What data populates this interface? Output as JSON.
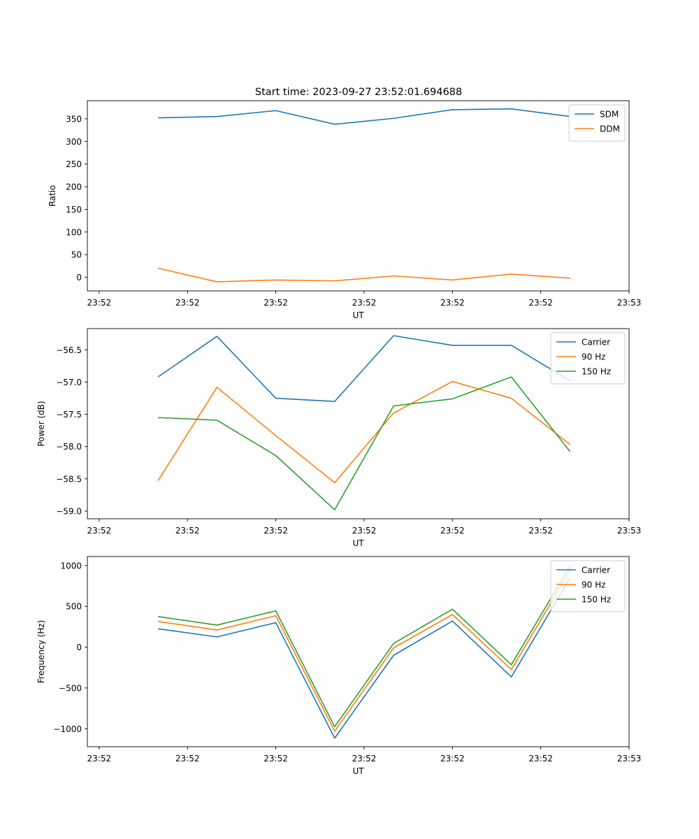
{
  "figure_title": "Start time: 2023-09-27 23:52:01.694688",
  "colors": {
    "blue": "#1f77b4",
    "orange": "#ff7f0e",
    "green": "#2ca02c"
  },
  "chart_data": [
    {
      "type": "line",
      "x_tick_labels": [
        "23:52",
        "23:52",
        "23:52",
        "23:52",
        "23:52",
        "23:52",
        "23:53"
      ],
      "x_index": [
        1,
        2,
        3,
        4,
        5,
        6,
        7,
        8
      ],
      "xlim": [
        -0.2,
        9.0
      ],
      "xticks": [
        0,
        1.5,
        3,
        4.5,
        6,
        7.5,
        9
      ],
      "xlabel": "UT",
      "ylabel": "Ratio",
      "ylim": [
        -30,
        390
      ],
      "yticks": [
        0,
        50,
        100,
        150,
        200,
        250,
        300,
        350
      ],
      "ytick_labels": [
        "0",
        "50",
        "100",
        "150",
        "200",
        "250",
        "300",
        "350"
      ],
      "legend_position": "top-right",
      "series": [
        {
          "name": "SDM",
          "color": "#1f77b4",
          "values": [
            352,
            355,
            368,
            338,
            351,
            370,
            372,
            355
          ]
        },
        {
          "name": "DDM",
          "color": "#ff7f0e",
          "values": [
            20,
            -10,
            -6,
            -8,
            3,
            -6,
            7,
            -2
          ]
        }
      ]
    },
    {
      "type": "line",
      "x_tick_labels": [
        "23:52",
        "23:52",
        "23:52",
        "23:52",
        "23:52",
        "23:52",
        "23:53"
      ],
      "x_index": [
        1,
        2,
        3,
        4,
        5,
        6,
        7,
        8
      ],
      "xlim": [
        -0.2,
        9.0
      ],
      "xticks": [
        0,
        1.5,
        3,
        4.5,
        6,
        7.5,
        9
      ],
      "xlabel": "UT",
      "ylabel": "Power (dB)",
      "ylim": [
        -59.12,
        -56.17
      ],
      "yticks": [
        -59.0,
        -58.5,
        -58.0,
        -57.5,
        -57.0,
        -56.5
      ],
      "ytick_labels": [
        "−59.0",
        "−58.5",
        "−58.0",
        "−57.5",
        "−57.0",
        "−56.5"
      ],
      "legend_position": "top-right",
      "series": [
        {
          "name": "Carrier",
          "color": "#1f77b4",
          "values": [
            -56.92,
            -56.29,
            -57.25,
            -57.3,
            -56.28,
            -56.43,
            -56.43,
            -56.98
          ]
        },
        {
          "name": "90 Hz",
          "color": "#ff7f0e",
          "values": [
            -58.53,
            -57.08,
            -57.83,
            -58.56,
            -57.48,
            -56.99,
            -57.25,
            -57.97
          ]
        },
        {
          "name": "150 Hz",
          "color": "#2ca02c",
          "values": [
            -57.55,
            -57.59,
            -58.14,
            -58.98,
            -57.37,
            -57.26,
            -56.92,
            -58.08
          ]
        }
      ]
    },
    {
      "type": "line",
      "x_tick_labels": [
        "23:52",
        "23:52",
        "23:52",
        "23:52",
        "23:52",
        "23:52",
        "23:53"
      ],
      "x_index": [
        1,
        2,
        3,
        4,
        5,
        6,
        7,
        8
      ],
      "xlim": [
        -0.2,
        9.0
      ],
      "xticks": [
        0,
        1.5,
        3,
        4.5,
        6,
        7.5,
        9
      ],
      "xlabel": "UT",
      "ylabel": "Frequency (Hz)",
      "ylim": [
        -1220,
        1110
      ],
      "yticks": [
        -1000,
        -500,
        0,
        500,
        1000
      ],
      "ytick_labels": [
        "−1000",
        "−500",
        "0",
        "500",
        "1000"
      ],
      "legend_position": "top-right",
      "series": [
        {
          "name": "Carrier",
          "color": "#1f77b4",
          "values": [
            225,
            125,
            300,
            -1115,
            -100,
            320,
            -365,
            850
          ]
        },
        {
          "name": "90 Hz",
          "color": "#ff7f0e",
          "values": [
            315,
            210,
            385,
            -1030,
            -10,
            400,
            -275,
            940
          ]
        },
        {
          "name": "150 Hz",
          "color": "#2ca02c",
          "values": [
            375,
            270,
            445,
            -975,
            45,
            465,
            -215,
            995
          ]
        }
      ]
    }
  ]
}
